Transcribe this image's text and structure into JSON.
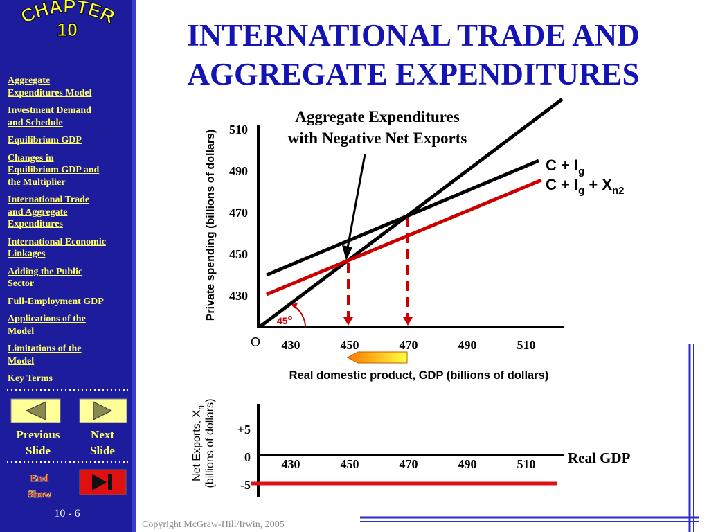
{
  "sidebar": {
    "chapter_label": "CHAPTER",
    "chapter_number": "10",
    "nav": [
      [
        "Aggregate",
        "Expenditures Model"
      ],
      [
        "Investment Demand",
        "and Schedule"
      ],
      [
        "Equilibrium GDP"
      ],
      [
        "Changes in",
        "Equilibrium GDP and",
        "the Multiplier"
      ],
      [
        "International Trade",
        "and Aggregate",
        "Expenditures"
      ],
      [
        "International Economic",
        "Linkages"
      ],
      [
        "Adding the Public",
        "Sector"
      ],
      [
        "Full-Employment GDP"
      ],
      [
        "Applications of the",
        "Model"
      ],
      [
        "Limitations of the",
        "Model"
      ],
      [
        "Key Terms"
      ]
    ],
    "previous": [
      "Previous",
      "Slide"
    ],
    "next": [
      "Next",
      "Slide"
    ],
    "end_show": [
      "End",
      "Show"
    ],
    "slide_number": "10 - 6"
  },
  "title": [
    "INTERNATIONAL TRADE AND",
    "AGGREGATE EXPENDITURES"
  ],
  "upper_graph": {
    "annotation": [
      "Aggregate Expenditures",
      "with Negative Net Exports"
    ],
    "y_label": "Private spending (billions of dollars)",
    "x_label": "Real domestic product, GDP (billions of dollars)",
    "yticks": [
      510,
      490,
      470,
      450,
      430
    ],
    "xticks": [
      430,
      450,
      470,
      490,
      510
    ],
    "origin": "O",
    "angle": "45",
    "angle_sup": "o",
    "line1": [
      "C + I",
      "g"
    ],
    "line2": [
      "C + I",
      "g",
      " + X",
      "n2"
    ]
  },
  "lower_graph": {
    "y_label": [
      "Net Exports, X",
      "n",
      "(billions of dollars)"
    ],
    "yticks": [
      "+5",
      0,
      -5
    ],
    "xticks": [
      430,
      450,
      470,
      490,
      510
    ],
    "x_label": "Real GDP"
  },
  "copyright": "Copyright McGraw-Hill/Irwin, 2005"
}
